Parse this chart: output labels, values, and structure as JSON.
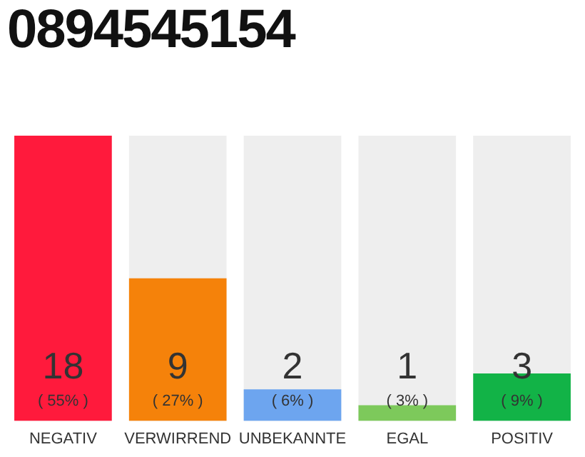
{
  "chart_data": {
    "type": "bar",
    "title": "0894545154",
    "categories": [
      "NEGATIV",
      "VERWIRREND",
      "UNBEKANNTE",
      "EGAL",
      "POSITIV"
    ],
    "values": [
      18,
      9,
      2,
      1,
      3
    ],
    "colors": [
      "#ff1a3c",
      "#f5820a",
      "#6da5ef",
      "#7dc95b",
      "#12b347"
    ],
    "value_labels": [
      "18\n( 55% )",
      "9\n( 27% )",
      "2\n( 6% )",
      "1\n( 3% )",
      "3\n( 9% )"
    ],
    "grid": false,
    "legend": false
  }
}
